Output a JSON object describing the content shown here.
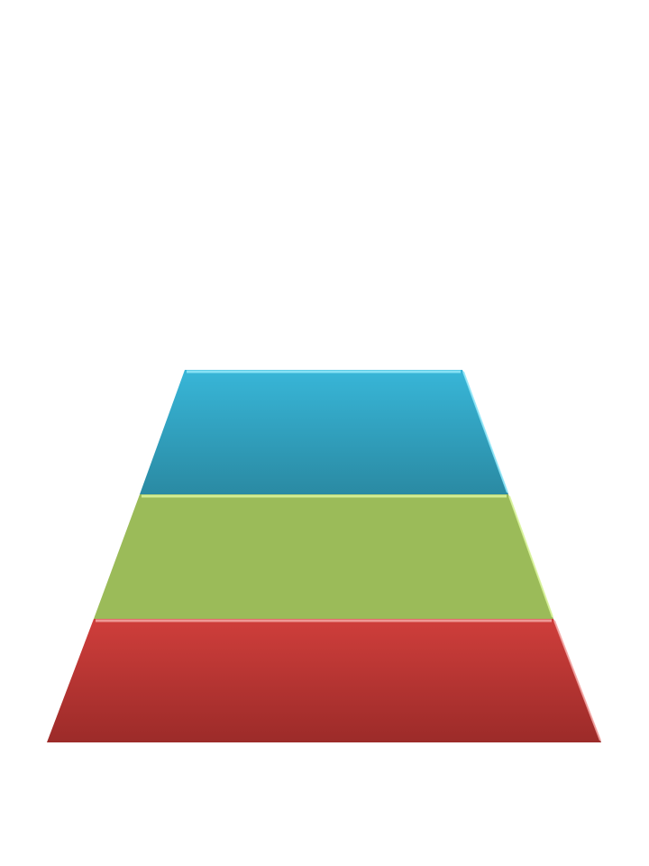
{
  "diagram": {
    "type": "pyramid",
    "levels": [
      {
        "label": "",
        "color_top": "#38b6d8",
        "color_bottom": "#2a8aa3",
        "edge_light": "#8fe6f7"
      },
      {
        "label": "",
        "color_top": "#9bbb59",
        "color_bottom": "#9bbb59",
        "edge_light": "#d8f39a"
      },
      {
        "label": "",
        "color_top": "#cf3e3b",
        "color_bottom": "#9c2b29",
        "edge_light": "#f2a3a1"
      }
    ]
  }
}
